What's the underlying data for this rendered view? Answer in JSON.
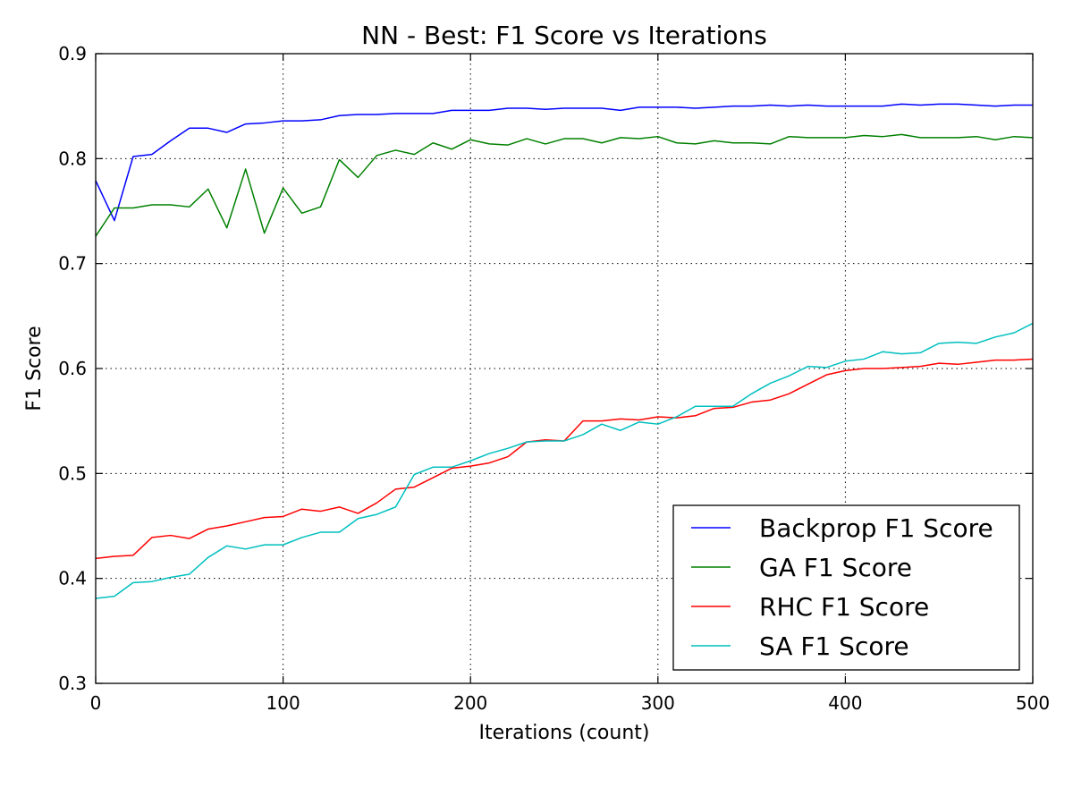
{
  "chart_data": {
    "type": "line",
    "title": "NN - Best: F1 Score vs Iterations",
    "xlabel": "Iterations (count)",
    "ylabel": "F1 Score",
    "xlim": [
      0,
      500
    ],
    "ylim": [
      0.3,
      0.9
    ],
    "xticks": [
      0,
      100,
      200,
      300,
      400,
      500
    ],
    "xtick_labels": [
      "0",
      "100",
      "200",
      "300",
      "400",
      "500"
    ],
    "yticks": [
      0.3,
      0.4,
      0.5,
      0.6,
      0.7,
      0.8,
      0.9
    ],
    "ytick_labels": [
      "0.3",
      "0.4",
      "0.5",
      "0.6",
      "0.7",
      "0.8",
      "0.9"
    ],
    "grid": true,
    "legend_position": "lower-right",
    "x": [
      0,
      10,
      20,
      30,
      40,
      50,
      60,
      70,
      80,
      90,
      100,
      110,
      120,
      130,
      140,
      150,
      160,
      170,
      180,
      190,
      200,
      210,
      220,
      230,
      240,
      250,
      260,
      270,
      280,
      290,
      300,
      310,
      320,
      330,
      340,
      350,
      360,
      370,
      380,
      390,
      400,
      410,
      420,
      430,
      440,
      450,
      460,
      470,
      480,
      490,
      500
    ],
    "series": [
      {
        "name": "Backprop F1 Score",
        "color": "#0000ff",
        "values": [
          0.779,
          0.741,
          0.802,
          0.804,
          0.817,
          0.829,
          0.829,
          0.825,
          0.833,
          0.834,
          0.836,
          0.836,
          0.837,
          0.841,
          0.842,
          0.842,
          0.843,
          0.843,
          0.843,
          0.846,
          0.846,
          0.846,
          0.848,
          0.848,
          0.847,
          0.848,
          0.848,
          0.848,
          0.846,
          0.849,
          0.849,
          0.849,
          0.848,
          0.849,
          0.85,
          0.85,
          0.851,
          0.85,
          0.851,
          0.85,
          0.85,
          0.85,
          0.85,
          0.852,
          0.851,
          0.852,
          0.852,
          0.851,
          0.85,
          0.851,
          0.851
        ]
      },
      {
        "name": "GA F1 Score",
        "color": "#008000",
        "values": [
          0.726,
          0.753,
          0.753,
          0.756,
          0.756,
          0.754,
          0.771,
          0.734,
          0.79,
          0.729,
          0.772,
          0.748,
          0.754,
          0.799,
          0.782,
          0.803,
          0.808,
          0.804,
          0.815,
          0.809,
          0.818,
          0.814,
          0.813,
          0.819,
          0.814,
          0.819,
          0.819,
          0.815,
          0.82,
          0.819,
          0.821,
          0.815,
          0.814,
          0.817,
          0.815,
          0.815,
          0.814,
          0.821,
          0.82,
          0.82,
          0.82,
          0.822,
          0.821,
          0.823,
          0.82,
          0.82,
          0.82,
          0.821,
          0.818,
          0.821,
          0.82
        ]
      },
      {
        "name": "RHC F1 Score",
        "color": "#ff0000",
        "values": [
          0.419,
          0.421,
          0.422,
          0.439,
          0.441,
          0.438,
          0.447,
          0.45,
          0.454,
          0.458,
          0.459,
          0.466,
          0.464,
          0.468,
          0.462,
          0.472,
          0.485,
          0.487,
          0.496,
          0.505,
          0.507,
          0.51,
          0.516,
          0.53,
          0.532,
          0.531,
          0.55,
          0.55,
          0.552,
          0.551,
          0.554,
          0.553,
          0.555,
          0.562,
          0.563,
          0.568,
          0.57,
          0.576,
          0.585,
          0.594,
          0.598,
          0.6,
          0.6,
          0.601,
          0.602,
          0.605,
          0.604,
          0.606,
          0.608,
          0.608,
          0.609
        ]
      },
      {
        "name": "SA F1 Score",
        "color": "#00bfbf",
        "values": [
          0.381,
          0.383,
          0.396,
          0.397,
          0.401,
          0.404,
          0.42,
          0.431,
          0.428,
          0.432,
          0.432,
          0.439,
          0.444,
          0.444,
          0.457,
          0.461,
          0.468,
          0.499,
          0.506,
          0.506,
          0.512,
          0.519,
          0.524,
          0.53,
          0.531,
          0.531,
          0.537,
          0.547,
          0.541,
          0.549,
          0.547,
          0.554,
          0.564,
          0.564,
          0.564,
          0.576,
          0.586,
          0.593,
          0.602,
          0.601,
          0.607,
          0.609,
          0.616,
          0.614,
          0.615,
          0.624,
          0.625,
          0.624,
          0.63,
          0.634,
          0.643
        ]
      }
    ]
  }
}
